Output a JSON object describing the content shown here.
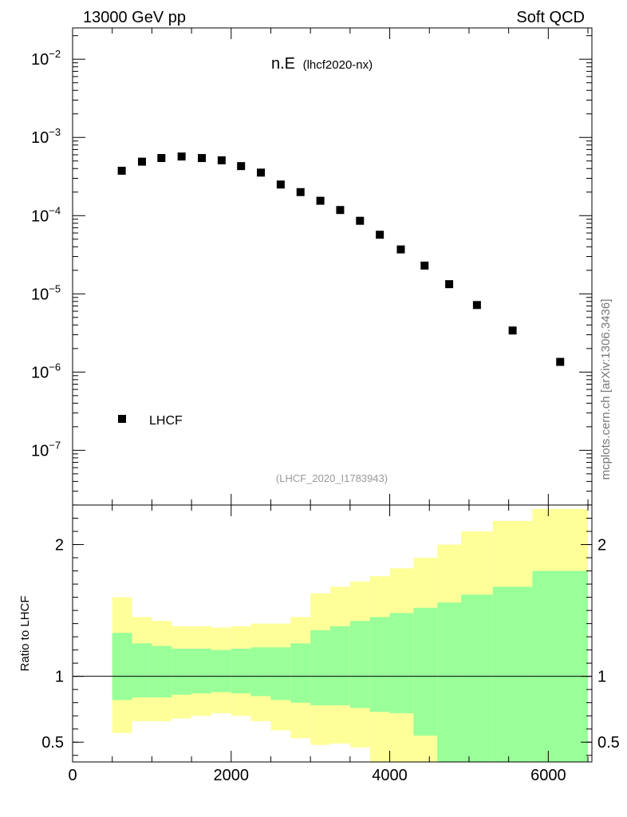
{
  "header": {
    "left": "13000 GeV pp",
    "right": "Soft QCD"
  },
  "side_label": "mcplots.cern.ch [arXiv:1306.3436]",
  "chart_data": [
    {
      "type": "scatter",
      "title": "n.E",
      "title_sub": "(lhcf2020-nx)",
      "analysis_id": "(LHCF_2020_I1783943)",
      "xlabel": "",
      "ylabel": "",
      "yscale": "log",
      "xlim": [
        0,
        6550
      ],
      "ylim_log10": [
        -7.7,
        -1.6
      ],
      "y_ticks": [
        {
          "base": "10",
          "exp": "−2",
          "log10": -2
        },
        {
          "base": "10",
          "exp": "−3",
          "log10": -3
        },
        {
          "base": "10",
          "exp": "−4",
          "log10": -4
        },
        {
          "base": "10",
          "exp": "−5",
          "log10": -5
        },
        {
          "base": "10",
          "exp": "−6",
          "log10": -6
        },
        {
          "base": "10",
          "exp": "−7",
          "log10": -7
        }
      ],
      "legend": [
        {
          "label": "LHCF",
          "marker": "square",
          "color": "#000000"
        }
      ],
      "series": [
        {
          "name": "LHCF",
          "x": [
            620,
            875,
            1120,
            1375,
            1630,
            1880,
            2125,
            2375,
            2625,
            2875,
            3125,
            3375,
            3625,
            3875,
            4140,
            4440,
            4750,
            5100,
            5550,
            6150
          ],
          "y": [
            0.000375,
            0.00049,
            0.000545,
            0.00057,
            0.000545,
            0.00051,
            0.00043,
            0.000355,
            0.00025,
            0.0002,
            0.000155,
            0.000118,
            8.6e-05,
            5.7e-05,
            3.7e-05,
            2.3e-05,
            1.33e-05,
            7.2e-06,
            3.4e-06,
            1.35e-06
          ]
        }
      ]
    },
    {
      "type": "area",
      "ylabel": "Ratio to LHCF",
      "xlim": [
        0,
        6550
      ],
      "ylim": [
        0.35,
        2.3
      ],
      "y_ticks": [
        "0.5",
        "1",
        "2"
      ],
      "y_tick_values": [
        0.5,
        1,
        2
      ],
      "x_ticks": [
        "0",
        "2000",
        "4000",
        "6000"
      ],
      "x_tick_values": [
        0,
        2000,
        4000,
        6000
      ],
      "reference_line": 1,
      "bins": {
        "edges": [
          500,
          750,
          1000,
          1250,
          1500,
          1750,
          2000,
          2250,
          2500,
          2750,
          3000,
          3250,
          3500,
          3750,
          4000,
          4300,
          4600,
          4900,
          5300,
          5800,
          6500
        ],
        "yellow_hi": [
          1.6,
          1.45,
          1.42,
          1.38,
          1.38,
          1.37,
          1.38,
          1.4,
          1.4,
          1.45,
          1.63,
          1.68,
          1.72,
          1.76,
          1.82,
          1.9,
          2.0,
          2.1,
          2.18,
          2.27
        ],
        "yellow_lo": [
          0.57,
          0.66,
          0.66,
          0.68,
          0.7,
          0.72,
          0.7,
          0.66,
          0.59,
          0.53,
          0.48,
          0.49,
          0.46,
          0.35,
          0.35,
          0.35,
          0.35,
          0.35,
          0.35,
          0.35
        ],
        "green_hi": [
          1.33,
          1.25,
          1.23,
          1.21,
          1.21,
          1.2,
          1.21,
          1.22,
          1.22,
          1.25,
          1.35,
          1.38,
          1.42,
          1.45,
          1.48,
          1.52,
          1.56,
          1.62,
          1.68,
          1.8
        ],
        "green_lo": [
          0.82,
          0.84,
          0.84,
          0.86,
          0.87,
          0.88,
          0.87,
          0.85,
          0.82,
          0.8,
          0.78,
          0.78,
          0.76,
          0.73,
          0.72,
          0.55,
          0.35,
          0.35,
          0.35,
          0.35
        ]
      },
      "colors": {
        "yellow": "#ffff99",
        "green": "#99ff99",
        "axis": "#000000"
      }
    }
  ]
}
